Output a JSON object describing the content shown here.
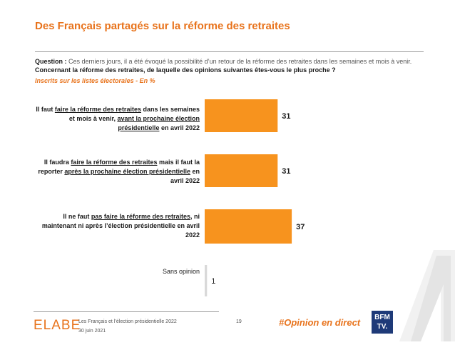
{
  "header": {
    "title": "Des Français partagés sur la réforme des retraites",
    "question_label": "Question :",
    "question_text": "Ces derniers jours, il a été évoqué la possibilité d’un retour de la réforme des retraites dans les semaines et mois à venir.",
    "question_bold": "Concernant la réforme des retraites, de laquelle des opinions suivantes êtes-vous le plus proche ?",
    "base": "Inscrits sur les listes électorales - En %"
  },
  "labels": {
    "opt1": {
      "a": "Il faut ",
      "b": "faire la réforme des retraites",
      "c": " dans les semaines et mois à venir, ",
      "d": "avant la prochaine élection présidentielle",
      "e": " en avril 2022"
    },
    "opt2": {
      "a": "Il faudra ",
      "b": "faire la réforme des retraites",
      "c": " mais il faut la reporter ",
      "d": "après la prochaine élection présidentielle",
      "e": " en avril 2022"
    },
    "opt3": {
      "a": "Il ne faut ",
      "b": "pas faire la réforme des retraites",
      "c": ", ni maintenant ni après l’élection présidentielle en avril 2022"
    },
    "opt4": "Sans opinion"
  },
  "chart_data": {
    "type": "bar",
    "orientation": "horizontal",
    "categories": [
      "Il faut faire la réforme des retraites dans les semaines et mois à venir, avant la prochaine élection présidentielle en avril 2022",
      "Il faudra faire la réforme des retraites mais il faut la reporter après la prochaine élection présidentielle en avril 2022",
      "Il ne faut pas faire la réforme des retraites, ni maintenant ni après l’élection présidentielle en avril 2022",
      "Sans opinion"
    ],
    "values": [
      31,
      31,
      37,
      1
    ],
    "colors": [
      "#f7931e",
      "#f7931e",
      "#f7931e",
      "#d9d9d9"
    ],
    "xlim": [
      0,
      100
    ]
  },
  "footer": {
    "logo": "ELABE",
    "study": "Les Français et l’élection présidentielle 2022",
    "date": "30 juin 2021",
    "page": "19",
    "hashtag": "#Opinion en direct",
    "brand_line1": "BFM",
    "brand_line2": "TV."
  },
  "colors": {
    "accent": "#e8731c",
    "bar": "#f7931e",
    "brand_blue": "#1e3a78"
  }
}
